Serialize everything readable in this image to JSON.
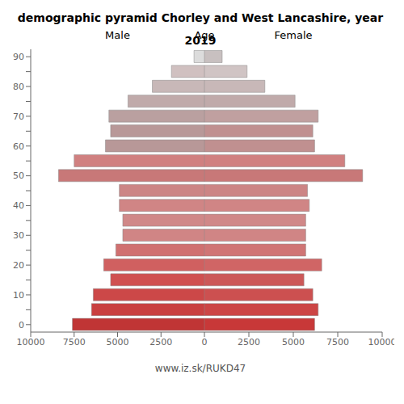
{
  "chart_data": [
    {
      "type": "bar",
      "title": "demographic pyramid Chorley and West Lancashire, year 2019",
      "subtitle": "Male",
      "ylabel": "Age",
      "orientation": "horizontal",
      "categories": [
        "0",
        null,
        "10",
        null,
        "20",
        null,
        "30",
        null,
        "40",
        null,
        "50",
        null,
        "60",
        null,
        "70",
        null,
        "80",
        null,
        "90"
      ],
      "values": [
        7600,
        6500,
        6400,
        5400,
        5800,
        5100,
        4700,
        4700,
        4900,
        4900,
        8400,
        7500,
        5700,
        5400,
        5500,
        4400,
        3000,
        1900,
        600
      ],
      "colors": [
        "#c03535",
        "#c94040",
        "#cc4848",
        "#d05050",
        "#d06060",
        "#d07070",
        "#d08585",
        "#d08888",
        "#d08585",
        "#cc8585",
        "#c87878",
        "#d08080",
        "#b89898",
        "#b89898",
        "#baa0a0",
        "#c0aaaa",
        "#c8b8b8",
        "#d0c0c0",
        "#dcdcdc"
      ],
      "xlim": [
        10000,
        0
      ],
      "xticks": [
        10000,
        7500,
        5000,
        2500,
        0
      ],
      "grid": false
    },
    {
      "type": "bar",
      "subtitle": "Female",
      "annotation": "www.iz.sk/RUKD47",
      "orientation": "horizontal",
      "values": [
        6200,
        6400,
        6100,
        5600,
        6600,
        5700,
        5700,
        5700,
        5900,
        5800,
        8900,
        7900,
        6200,
        6100,
        6400,
        5100,
        3400,
        2400,
        1000
      ],
      "colors": [
        "#c83838",
        "#cc4545",
        "#cc5050",
        "#cc5858",
        "#d06565",
        "#d07575",
        "#d08585",
        "#d08888",
        "#d08585",
        "#cc8585",
        "#c87878",
        "#d08080",
        "#c09090",
        "#c09090",
        "#c0a0a0",
        "#c0aaaa",
        "#c8b8b8",
        "#d0c4c4",
        "#c8c0c0"
      ],
      "xlim": [
        0,
        10000
      ],
      "xticks": [
        0,
        2500,
        5000,
        7500,
        10000
      ],
      "grid": false
    }
  ]
}
